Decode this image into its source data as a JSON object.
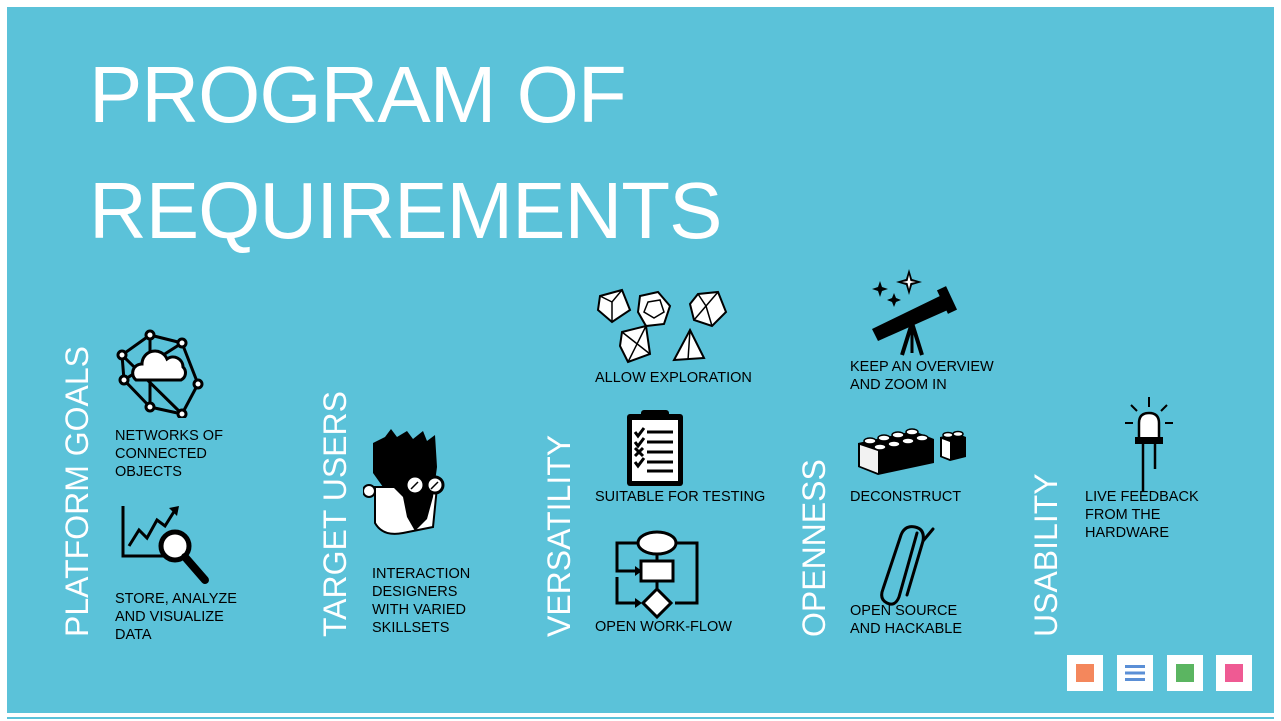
{
  "title": {
    "line1": "PROGRAM OF",
    "line2": "REQUIREMENTS"
  },
  "categories": [
    "PLATFORM GOALS",
    "TARGET USERS",
    "VERSATILITY",
    "OPENNESS",
    "USABILITY"
  ],
  "items": [
    {
      "icon": "network-cloud-icon",
      "lines": [
        "NETWORKS OF",
        "CONNECTED",
        "OBJECTS"
      ]
    },
    {
      "icon": "chart-magnifier-icon",
      "lines": [
        "STORE, ANALYZE",
        "AND VISUALIZE",
        "DATA"
      ]
    },
    {
      "icon": "designer-avatar-icon",
      "lines": [
        "INTERACTION",
        "DESIGNERS",
        "WITH VARIED",
        "SKILLSETS"
      ]
    },
    {
      "icon": "dice-polyhedra-icon",
      "lines": [
        "ALLOW EXPLORATION"
      ]
    },
    {
      "icon": "clipboard-checklist-icon",
      "lines": [
        "SUITABLE FOR TESTING"
      ]
    },
    {
      "icon": "flowchart-icon",
      "lines": [
        "OPEN WORK-FLOW"
      ]
    },
    {
      "icon": "telescope-icon",
      "lines": [
        "KEEP AN OVERVIEW",
        "AND ZOOM IN"
      ]
    },
    {
      "icon": "lego-bricks-icon",
      "lines": [
        "DECONSTRUCT"
      ]
    },
    {
      "icon": "paperclip-icon",
      "lines": [
        "OPEN SOURCE",
        "AND HACKABLE"
      ]
    },
    {
      "icon": "led-icon",
      "lines": [
        "LIVE FEEDBACK",
        "FROM THE",
        "HARDWARE"
      ]
    }
  ],
  "nav_buttons": [
    {
      "icon": "orange-square-icon",
      "color": "#f4875c"
    },
    {
      "icon": "menu-lines-icon",
      "color": "#5b8fd6"
    },
    {
      "icon": "green-square-icon",
      "color": "#5bb561"
    },
    {
      "icon": "pink-square-icon",
      "color": "#ef5a93"
    }
  ],
  "colors": {
    "background": "#5bc2d9",
    "title_text": "#ffffff",
    "label_text": "#000000"
  }
}
